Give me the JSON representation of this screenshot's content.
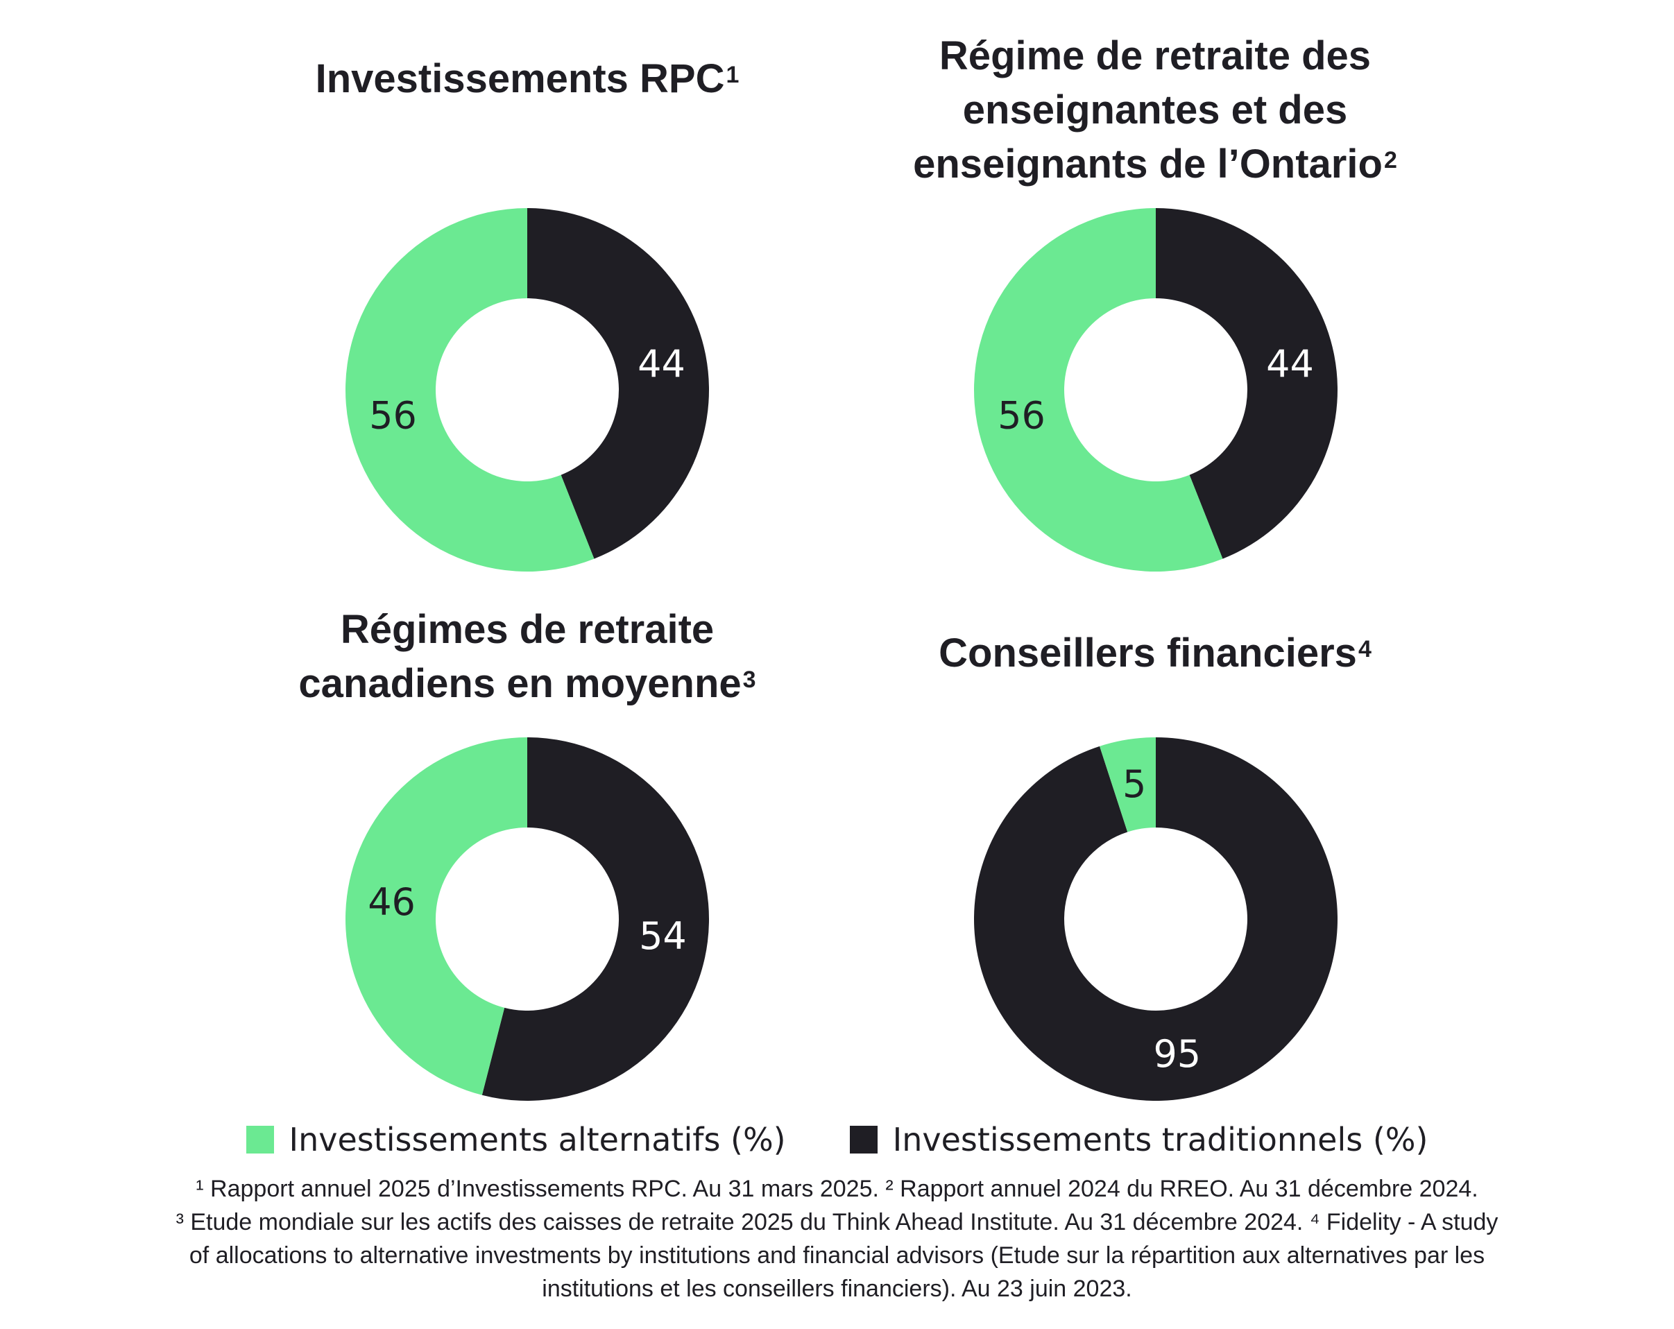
{
  "colors": {
    "alternatives": "#6be992",
    "traditional": "#1f1e24",
    "label_on_light": "#1f1e24",
    "label_on_dark": "#ffffff"
  },
  "chart_data": [
    {
      "type": "pie",
      "donut": true,
      "title": "Investissements RPC",
      "title_sup": "1",
      "title_lines": [
        "Investissements RPC"
      ],
      "categories": [
        "Investissements alternatifs (%)",
        "Investissements traditionnels (%)"
      ],
      "values": [
        56,
        44
      ],
      "data_labels": [
        "56",
        "44"
      ]
    },
    {
      "type": "pie",
      "donut": true,
      "title": "Régime de retraite des enseignantes et des enseignants de l’Ontario",
      "title_sup": "2",
      "title_lines": [
        "Régime de retraite des",
        "enseignantes et des",
        "enseignants de l’Ontario"
      ],
      "categories": [
        "Investissements alternatifs (%)",
        "Investissements traditionnels (%)"
      ],
      "values": [
        56,
        44
      ],
      "data_labels": [
        "56",
        "44"
      ]
    },
    {
      "type": "pie",
      "donut": true,
      "title": "Régimes de retraite canadiens en moyenne",
      "title_sup": "3",
      "title_lines": [
        "Régimes de retraite",
        "canadiens en moyenne"
      ],
      "categories": [
        "Investissements alternatifs (%)",
        "Investissements traditionnels (%)"
      ],
      "values": [
        46,
        54
      ],
      "data_labels": [
        "46",
        "54"
      ]
    },
    {
      "type": "pie",
      "donut": true,
      "title": "Conseillers financiers",
      "title_sup": "4",
      "title_lines": [
        "Conseillers financiers"
      ],
      "categories": [
        "Investissements alternatifs (%)",
        "Investissements traditionnels (%)"
      ],
      "values": [
        5,
        95
      ],
      "data_labels": [
        "5",
        "95"
      ]
    }
  ],
  "legend": {
    "placement": "bottom",
    "items": [
      {
        "label": "Investissements alternatifs (%)",
        "color": "#6be992"
      },
      {
        "label": "Investissements traditionnels (%)",
        "color": "#1f1e24"
      }
    ]
  },
  "footnotes": {
    "lines": [
      "¹ Rapport annuel 2025 d’Investissements RPC. Au 31 mars 2025. ² Rapport annuel 2024 du RREO. Au 31 décembre 2024.",
      "³ Etude mondiale sur les actifs des caisses de retraite 2025 du Think Ahead Institute. Au 31 décembre 2024. ⁴ Fidelity - A study",
      "of allocations to alternative investments by institutions and financial advisors (Etude sur la répartition aux alternatives par les",
      "institutions et les conseillers financiers). Au 23 juin 2023."
    ]
  }
}
